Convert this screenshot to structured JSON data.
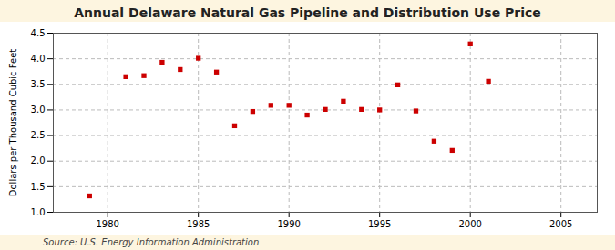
{
  "chart_data": {
    "type": "scatter",
    "title": "Annual Delaware Natural Gas Pipeline and Distribution Use Price",
    "ylabel": "Dollars per Thousand Cubic Feet",
    "source": "Source: U.S. Energy Information Administration",
    "x": [
      1979,
      1981,
      1982,
      1983,
      1984,
      1985,
      1986,
      1987,
      1988,
      1989,
      1990,
      1991,
      1992,
      1993,
      1994,
      1995,
      1996,
      1997,
      1998,
      1999,
      2000,
      2001
    ],
    "values": [
      1.32,
      3.65,
      3.67,
      3.93,
      3.79,
      4.01,
      3.74,
      2.69,
      2.97,
      3.09,
      3.09,
      2.9,
      3.01,
      3.17,
      3.01,
      3.0,
      3.49,
      2.98,
      2.39,
      2.21,
      4.29,
      3.56
    ],
    "color": "#cc0000",
    "marker": "square",
    "xlim": [
      1977,
      2007
    ],
    "ylim": [
      1.0,
      4.5
    ],
    "xticks": [
      1980,
      1985,
      1990,
      1995,
      2000,
      2005
    ],
    "yticks": [
      {
        "value": 1.0,
        "label": "1.0"
      },
      1.5,
      {
        "value": 2.0,
        "label": "2.0"
      },
      2.5,
      {
        "value": 3.0,
        "label": "3.0"
      },
      3.5,
      {
        "value": 4.0,
        "label": "4.0"
      },
      4.5
    ],
    "grid": true
  }
}
